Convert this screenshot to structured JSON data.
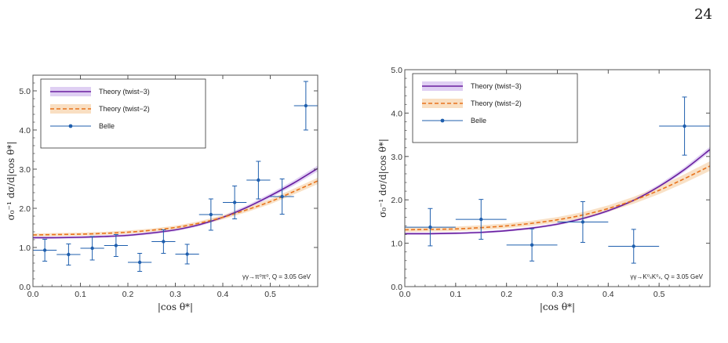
{
  "page": {
    "number": "24"
  },
  "legend_labels": {
    "twist3": "Theory (twist−3)",
    "twist2": "Theory (twist−2)",
    "belle": "Belle"
  },
  "colors": {
    "twist3": "#6a1fa0",
    "twist3_band": "#d7c3f0",
    "twist2": "#e8731c",
    "twist2_band": "#f7d7b3",
    "belle": "#1f5fae",
    "frame": "#555555"
  },
  "chart_data": [
    {
      "type": "scatter",
      "panel": "left",
      "xlabel": "|cos θ*|",
      "ylabel": "σ₀⁻¹ dσ/d|cos θ*|",
      "annotation": "γγ→π⁰π⁰,  Q = 3.05 GeV",
      "xlim": [
        0.0,
        0.6
      ],
      "ylim": [
        0.0,
        5.4
      ],
      "xticks": [
        "0.0",
        "0.1",
        "0.2",
        "0.3",
        "0.4",
        "0.5"
      ],
      "yticks": [
        "0.0",
        "1.0",
        "2.0",
        "3.0",
        "4.0",
        "5.0"
      ],
      "series": [
        {
          "name": "Belle",
          "kind": "points",
          "x": [
            0.025,
            0.075,
            0.125,
            0.175,
            0.225,
            0.275,
            0.325,
            0.375,
            0.425,
            0.475,
            0.525,
            0.575
          ],
          "y": [
            0.93,
            0.82,
            0.98,
            1.05,
            0.62,
            1.15,
            0.83,
            1.84,
            2.15,
            2.72,
            2.3,
            4.62
          ],
          "xerr": 0.025,
          "yerr": [
            0.28,
            0.27,
            0.3,
            0.28,
            0.23,
            0.3,
            0.25,
            0.4,
            0.42,
            0.48,
            0.45,
            0.62
          ]
        },
        {
          "name": "Theory (twist−3)",
          "kind": "curve",
          "x": [
            0.0,
            0.05,
            0.1,
            0.15,
            0.2,
            0.25,
            0.3,
            0.35,
            0.4,
            0.45,
            0.5,
            0.55,
            0.6
          ],
          "y": [
            1.25,
            1.25,
            1.26,
            1.28,
            1.31,
            1.37,
            1.45,
            1.58,
            1.77,
            2.02,
            2.32,
            2.65,
            3.02
          ],
          "band": 0.05
        },
        {
          "name": "Theory (twist−2)",
          "kind": "curve",
          "x": [
            0.0,
            0.05,
            0.1,
            0.15,
            0.2,
            0.25,
            0.3,
            0.35,
            0.4,
            0.45,
            0.5,
            0.55,
            0.6
          ],
          "y": [
            1.32,
            1.33,
            1.34,
            1.36,
            1.39,
            1.44,
            1.51,
            1.62,
            1.77,
            1.96,
            2.17,
            2.43,
            2.7
          ],
          "band": 0.06
        }
      ]
    },
    {
      "type": "scatter",
      "panel": "right",
      "xlabel": "|cos θ*|",
      "ylabel": "σ₀⁻¹ dσ/d|cos θ*|",
      "annotation": "γγ→K⁰ₛK⁰ₛ,  Q = 3.05 GeV",
      "xlim": [
        0.0,
        0.6
      ],
      "ylim": [
        0.0,
        5.0
      ],
      "xticks": [
        "0.0",
        "0.1",
        "0.2",
        "0.3",
        "0.4",
        "0.5"
      ],
      "yticks": [
        "0.0",
        "1.0",
        "2.0",
        "3.0",
        "4.0",
        "5.0"
      ],
      "series": [
        {
          "name": "Belle",
          "kind": "points",
          "x": [
            0.05,
            0.15,
            0.25,
            0.35,
            0.45,
            0.55
          ],
          "y": [
            1.37,
            1.55,
            0.96,
            1.49,
            0.93,
            3.7
          ],
          "xerr": 0.05,
          "yerr": [
            0.43,
            0.46,
            0.37,
            0.47,
            0.39,
            0.67
          ]
        },
        {
          "name": "Theory (twist−3)",
          "kind": "curve",
          "x": [
            0.0,
            0.05,
            0.1,
            0.15,
            0.2,
            0.25,
            0.3,
            0.35,
            0.4,
            0.45,
            0.5,
            0.55,
            0.6
          ],
          "y": [
            1.22,
            1.22,
            1.23,
            1.25,
            1.29,
            1.35,
            1.44,
            1.57,
            1.75,
            1.99,
            2.31,
            2.7,
            3.16
          ],
          "band": 0.04
        },
        {
          "name": "Theory (twist−2)",
          "kind": "curve",
          "x": [
            0.0,
            0.05,
            0.1,
            0.15,
            0.2,
            0.25,
            0.3,
            0.35,
            0.4,
            0.45,
            0.5,
            0.55,
            0.6
          ],
          "y": [
            1.31,
            1.32,
            1.33,
            1.36,
            1.4,
            1.46,
            1.54,
            1.65,
            1.8,
            1.99,
            2.22,
            2.49,
            2.78
          ],
          "band": 0.08
        }
      ]
    }
  ]
}
